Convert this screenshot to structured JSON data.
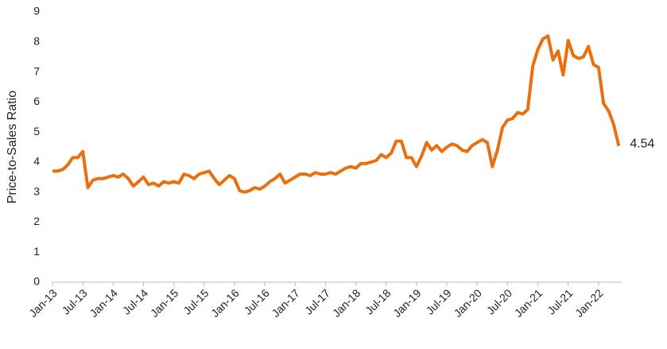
{
  "chart_data": {
    "type": "line",
    "y_label": "Price-to-Sales Ratio",
    "categories": [
      "Jan-13",
      null,
      null,
      null,
      null,
      null,
      "Jul-13",
      null,
      null,
      null,
      null,
      null,
      "Jan-14",
      null,
      null,
      null,
      null,
      null,
      "Jul-14",
      null,
      null,
      null,
      null,
      null,
      "Jan-15",
      null,
      null,
      null,
      null,
      null,
      "Jul-15",
      null,
      null,
      null,
      null,
      null,
      "Jan-16",
      null,
      null,
      null,
      null,
      null,
      "Jul-16",
      null,
      null,
      null,
      null,
      null,
      "Jan-17",
      null,
      null,
      null,
      null,
      null,
      "Jul-17",
      null,
      null,
      null,
      null,
      null,
      "Jan-18",
      null,
      null,
      null,
      null,
      null,
      "Jul-18",
      null,
      null,
      null,
      null,
      null,
      "Jan-19",
      null,
      null,
      null,
      null,
      null,
      "Jul-19",
      null,
      null,
      null,
      null,
      null,
      "Jan-20",
      null,
      null,
      null,
      null,
      null,
      "Jul-20",
      null,
      null,
      null,
      null,
      null,
      "Jan-21",
      null,
      null,
      null,
      null,
      null,
      "Jul-21",
      null,
      null,
      null,
      null,
      null,
      "Jan-22",
      null,
      null,
      null,
      null
    ],
    "series": [
      {
        "name": "Price-to-Sales Ratio",
        "color": "#e8700f",
        "values": [
          3.7,
          3.7,
          3.75,
          3.9,
          4.15,
          4.15,
          4.35,
          3.15,
          3.4,
          3.45,
          3.45,
          3.5,
          3.55,
          3.5,
          3.6,
          3.45,
          3.2,
          3.35,
          3.5,
          3.25,
          3.3,
          3.2,
          3.35,
          3.3,
          3.35,
          3.3,
          3.6,
          3.55,
          3.45,
          3.6,
          3.65,
          3.7,
          3.45,
          3.25,
          3.4,
          3.55,
          3.45,
          3.05,
          3.0,
          3.05,
          3.15,
          3.1,
          3.2,
          3.35,
          3.45,
          3.6,
          3.3,
          3.4,
          3.5,
          3.6,
          3.6,
          3.55,
          3.65,
          3.6,
          3.6,
          3.65,
          3.6,
          3.7,
          3.8,
          3.85,
          3.8,
          3.95,
          3.95,
          4.0,
          4.05,
          4.25,
          4.15,
          4.3,
          4.7,
          4.7,
          4.15,
          4.15,
          3.85,
          4.2,
          4.65,
          4.4,
          4.55,
          4.35,
          4.5,
          4.6,
          4.55,
          4.4,
          4.35,
          4.55,
          4.65,
          4.75,
          4.65,
          3.85,
          4.4,
          5.15,
          5.4,
          5.45,
          5.65,
          5.6,
          5.75,
          7.2,
          7.75,
          8.1,
          8.2,
          7.4,
          7.7,
          6.9,
          8.05,
          7.55,
          7.45,
          7.5,
          7.85,
          7.25,
          7.15,
          5.95,
          5.7,
          5.25,
          4.54
        ]
      }
    ],
    "ylim": [
      0,
      9
    ],
    "yticks": [
      0,
      1,
      2,
      3,
      4,
      5,
      6,
      7,
      8,
      9
    ],
    "grid": false
  }
}
